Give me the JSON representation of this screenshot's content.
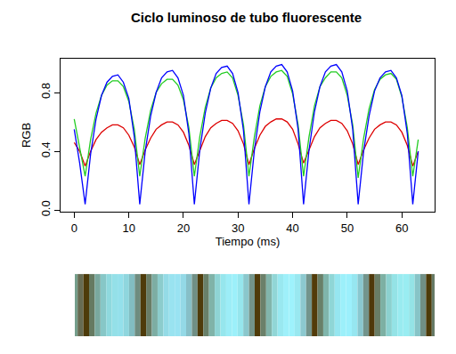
{
  "chart_data": {
    "type": "line",
    "title": "Ciclo luminoso de tubo fluorescente",
    "x_label": "Tiempo (ms)",
    "y_label": "RGB",
    "grid": false,
    "xlim": [
      -2.5,
      66
    ],
    "ylim": [
      -0.01,
      1.03
    ],
    "xticks": [
      0,
      10,
      20,
      30,
      40,
      50,
      60
    ],
    "yticks": [
      {
        "value": 0,
        "label": "0.0"
      },
      0.4,
      0.8
    ],
    "x": [
      0,
      1,
      2,
      3,
      4,
      5,
      6,
      7,
      8,
      9,
      10,
      11,
      12,
      13,
      14,
      15,
      16,
      17,
      18,
      19,
      20,
      21,
      22,
      23,
      24,
      25,
      26,
      27,
      28,
      29,
      30,
      31,
      32,
      33,
      34,
      35,
      36,
      37,
      38,
      39,
      40,
      41,
      42,
      43,
      44,
      45,
      46,
      47,
      48,
      49,
      50,
      51,
      52,
      53,
      54,
      55,
      56,
      57,
      58,
      59,
      60,
      61,
      62,
      63
    ],
    "series": [
      {
        "color": "#dd0000",
        "values": [
          0.46,
          0.4,
          0.3,
          0.4,
          0.48,
          0.53,
          0.56,
          0.58,
          0.58,
          0.56,
          0.51,
          0.43,
          0.31,
          0.41,
          0.49,
          0.55,
          0.58,
          0.6,
          0.6,
          0.58,
          0.53,
          0.44,
          0.31,
          0.41,
          0.5,
          0.56,
          0.59,
          0.61,
          0.61,
          0.59,
          0.54,
          0.45,
          0.31,
          0.42,
          0.51,
          0.57,
          0.6,
          0.62,
          0.62,
          0.6,
          0.55,
          0.45,
          0.32,
          0.41,
          0.5,
          0.56,
          0.59,
          0.61,
          0.61,
          0.59,
          0.54,
          0.45,
          0.31,
          0.41,
          0.49,
          0.55,
          0.58,
          0.6,
          0.6,
          0.58,
          0.53,
          0.44,
          0.3,
          0.4
        ]
      },
      {
        "color": "#22cc22",
        "values": [
          0.62,
          0.42,
          0.23,
          0.48,
          0.66,
          0.78,
          0.85,
          0.88,
          0.88,
          0.84,
          0.74,
          0.55,
          0.23,
          0.49,
          0.68,
          0.8,
          0.86,
          0.89,
          0.89,
          0.85,
          0.75,
          0.56,
          0.23,
          0.5,
          0.7,
          0.83,
          0.9,
          0.93,
          0.94,
          0.9,
          0.78,
          0.58,
          0.23,
          0.5,
          0.71,
          0.84,
          0.91,
          0.94,
          0.95,
          0.91,
          0.79,
          0.58,
          0.23,
          0.5,
          0.71,
          0.84,
          0.9,
          0.94,
          0.94,
          0.9,
          0.78,
          0.58,
          0.22,
          0.49,
          0.69,
          0.82,
          0.89,
          0.92,
          0.93,
          0.89,
          0.77,
          0.56,
          0.23,
          0.48
        ]
      },
      {
        "color": "#0000ff",
        "values": [
          0.55,
          0.32,
          0.04,
          0.38,
          0.62,
          0.78,
          0.87,
          0.91,
          0.92,
          0.87,
          0.76,
          0.5,
          0.04,
          0.4,
          0.64,
          0.8,
          0.9,
          0.94,
          0.95,
          0.9,
          0.78,
          0.52,
          0.04,
          0.41,
          0.66,
          0.83,
          0.93,
          0.97,
          0.98,
          0.93,
          0.8,
          0.54,
          0.04,
          0.41,
          0.67,
          0.84,
          0.94,
          0.98,
          0.99,
          0.94,
          0.81,
          0.55,
          0.04,
          0.41,
          0.67,
          0.84,
          0.94,
          0.98,
          0.99,
          0.94,
          0.81,
          0.55,
          0.04,
          0.4,
          0.64,
          0.81,
          0.9,
          0.94,
          0.95,
          0.9,
          0.78,
          0.52,
          0.04,
          0.4
        ]
      }
    ]
  }
}
